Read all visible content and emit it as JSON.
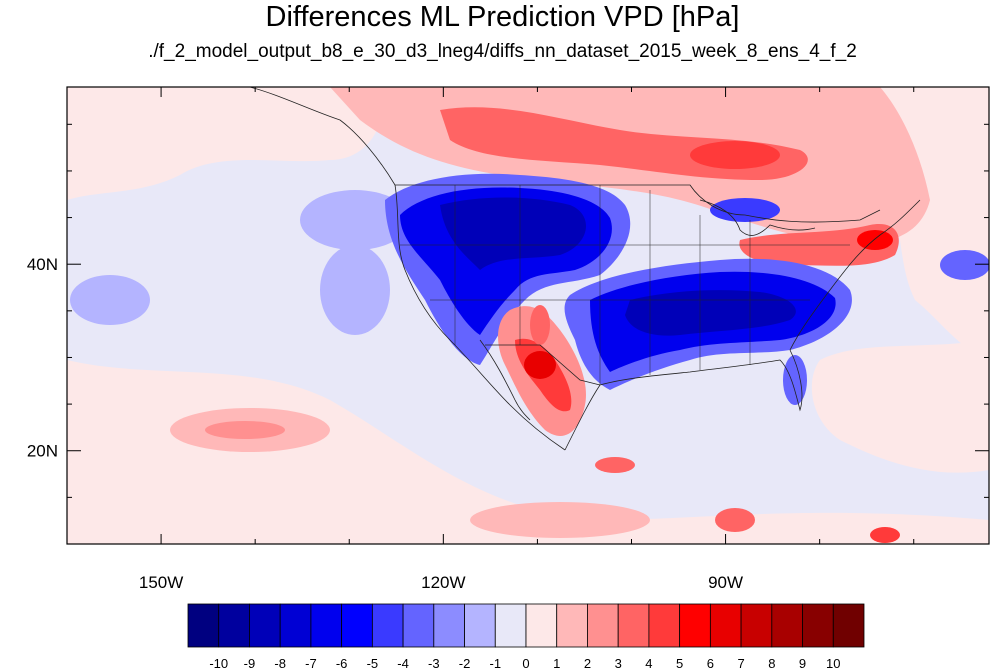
{
  "title": "Differences ML Prediction VPD [hPa]",
  "subtitle": "./f_2_model_output_b8_e_30_d3_lneg4/diffs_nn_dataset_2015_week_8_ens_4_f_2",
  "map": {
    "projection": "lat-lon",
    "lon_range": [
      -160,
      -62
    ],
    "lat_range": [
      10,
      59
    ],
    "lon_ticks": [
      {
        "value": -150,
        "label": "150W"
      },
      {
        "value": -120,
        "label": "120W"
      },
      {
        "value": -90,
        "label": "90W"
      }
    ],
    "lat_ticks": [
      {
        "value": 40,
        "label": "40N"
      },
      {
        "value": 20,
        "label": "20N"
      }
    ],
    "background_fill": "#e8e8f8",
    "features": [
      {
        "name": "western-us-negative-anomaly",
        "lon": -112,
        "lat": 43,
        "value": -10
      },
      {
        "name": "southeast-us-negative-anomaly",
        "lon": -88,
        "lat": 34,
        "value": -10
      },
      {
        "name": "mexico-positive-anomaly",
        "lon": -106,
        "lat": 29,
        "value": 7
      },
      {
        "name": "canada-positive-anomaly",
        "lon": -96,
        "lat": 53,
        "value": 4
      },
      {
        "name": "northeast-positive-anomaly",
        "lon": -76,
        "lat": 42,
        "value": 5
      }
    ]
  },
  "colorbar": {
    "labels": [
      "-10",
      "-9",
      "-8",
      "-7",
      "-6",
      "-5",
      "-4",
      "-3",
      "-2",
      "-1",
      "0",
      "1",
      "2",
      "3",
      "4",
      "5",
      "6",
      "7",
      "8",
      "9",
      "10"
    ],
    "colors": [
      "#000080",
      "#00009e",
      "#0000b8",
      "#0000d4",
      "#0000ee",
      "#0000ff",
      "#3a3aff",
      "#6464ff",
      "#8c8cff",
      "#b4b4ff",
      "#e8e8f8",
      "#fde8e8",
      "#ffb8b8",
      "#ff9090",
      "#ff6464",
      "#ff3a3a",
      "#ff0000",
      "#e80000",
      "#c80000",
      "#a80000",
      "#880000",
      "#700000"
    ]
  }
}
